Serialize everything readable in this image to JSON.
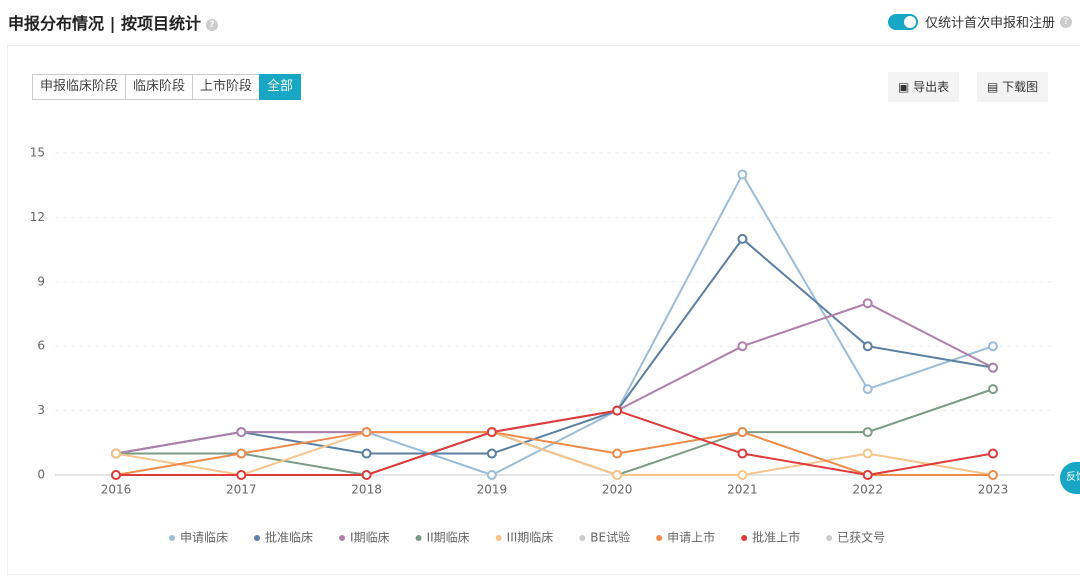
{
  "header": {
    "title": "申报分布情况 | 按项目统计",
    "toggle_label": "仅统计首次申报和注册"
  },
  "tabs": [
    "申报临床阶段",
    "临床阶段",
    "上市阶段",
    "全部"
  ],
  "active_tab": 3,
  "actions": [
    "导出表",
    "下载图"
  ],
  "feedback": "反馈",
  "chart_data": {
    "type": "line",
    "categories": [
      "2016",
      "2017",
      "2018",
      "2019",
      "2020",
      "2021",
      "2022",
      "2023"
    ],
    "ylim": [
      0,
      15
    ],
    "yticks": [
      0,
      3,
      6,
      9,
      12,
      15
    ],
    "grid": true,
    "legend": "bottom",
    "series": [
      {
        "name": "申请临床",
        "color": "#9dbdd9",
        "values": [
          1,
          2,
          2,
          0,
          3,
          14,
          4,
          6
        ]
      },
      {
        "name": "批准临床",
        "color": "#5a7fa3",
        "values": [
          1,
          2,
          1,
          1,
          3,
          11,
          6,
          5
        ]
      },
      {
        "name": "I期临床",
        "color": "#b07fac",
        "values": [
          1,
          2,
          2,
          2,
          3,
          6,
          8,
          5
        ]
      },
      {
        "name": "II期临床",
        "color": "#7b9b86",
        "values": [
          1,
          1,
          0,
          2,
          0,
          2,
          2,
          4
        ]
      },
      {
        "name": "III期临床",
        "color": "#f7c58c",
        "values": [
          1,
          0,
          2,
          2,
          0,
          0,
          1,
          0
        ]
      },
      {
        "name": "BE试验",
        "color": "#cccccc",
        "hidden": true
      },
      {
        "name": "申请上市",
        "color": "#f08a4b",
        "values": [
          0,
          1,
          2,
          2,
          1,
          2,
          0,
          0
        ]
      },
      {
        "name": "批准上市",
        "color": "#e03b3b",
        "values": [
          0,
          0,
          0,
          2,
          3,
          1,
          0,
          1
        ]
      },
      {
        "name": "已获文号",
        "color": "#cccccc",
        "hidden": true
      }
    ]
  }
}
